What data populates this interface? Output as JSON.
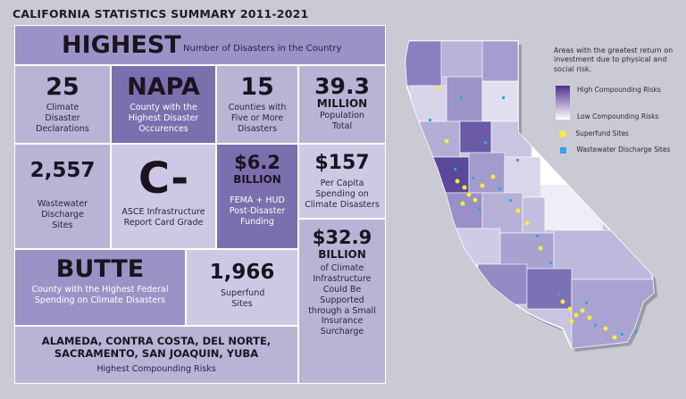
{
  "title": "CALIFORNIA STATISTICS SUMMARY 2011-2021",
  "tiles": {
    "highest": {
      "value": "HIGHEST",
      "label": "Number of Disasters in the Country"
    },
    "declarations": {
      "value": "25",
      "label": "Climate Disaster Declarations"
    },
    "napa": {
      "value": "NAPA",
      "label": "County with the Highest Disaster Occurences"
    },
    "counties": {
      "value": "15",
      "label": "Counties with Five or More Disasters"
    },
    "population": {
      "value": "39.3",
      "unit": "MILLION",
      "label": "Population Total"
    },
    "wastewater": {
      "value": "2,557",
      "label": "Wastewater Discharge Sites"
    },
    "asce": {
      "value": "C-",
      "label": "ASCE Infrastructure Report Card Grade"
    },
    "fema": {
      "value": "$6.2",
      "unit": "BILLION",
      "label": "FEMA + HUD Post-Disaster Funding"
    },
    "percapita": {
      "value": "$157",
      "label": "Per Capita Spending on Climate Disasters"
    },
    "infrastructure": {
      "value": "$32.9",
      "unit": "BILLION",
      "label": "of Climate Infrastructure Could Be Supported through a Small Insurance Surcharge"
    },
    "butte": {
      "value": "BUTTE",
      "label": "County with the Highest Federal Spending on Climate Disasters"
    },
    "superfund": {
      "value": "1,966",
      "label": "Superfund Sites"
    },
    "compounding": {
      "value": "ALAMEDA, CONTRA COSTA, DEL NORTE, SACRAMENTO, SAN JOAQUIN, YUBA",
      "label": "Highest Compounding Risks"
    }
  },
  "legend": {
    "title": "Areas with the greatest return on investment due to physical and social risk.",
    "high": "High Compounding Risks",
    "low": "Low Compounding Risks",
    "superfund": "Superfund Sites",
    "wastewater": "Wastewater Discharge Sites",
    "colors": {
      "high": "#4e2f8e",
      "low": "#ffffff",
      "superfund": "#f5ee3a",
      "wastewater": "#2ea6e8"
    }
  }
}
